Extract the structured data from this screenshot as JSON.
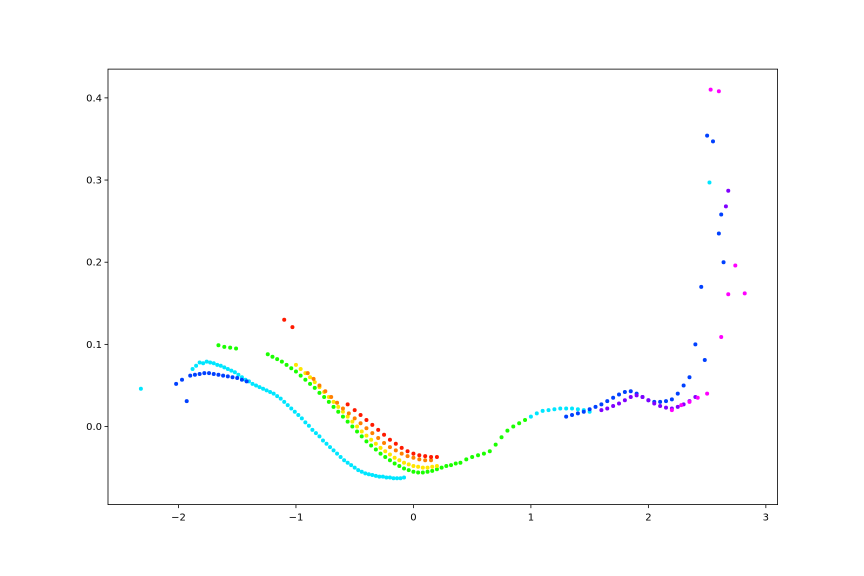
{
  "chart_data": {
    "type": "scatter",
    "title": "",
    "xlabel": "",
    "ylabel": "",
    "xlim": [
      -2.6,
      3.1
    ],
    "ylim": [
      -0.095,
      0.435
    ],
    "grid": false,
    "legend": "none",
    "x_ticks": [
      {
        "value": -2,
        "label": "−2"
      },
      {
        "value": -1,
        "label": "−1"
      },
      {
        "value": 0,
        "label": "0"
      },
      {
        "value": 1,
        "label": "1"
      },
      {
        "value": 2,
        "label": "2"
      },
      {
        "value": 3,
        "label": "3"
      }
    ],
    "y_ticks": [
      {
        "value": 0.0,
        "label": "0.0"
      },
      {
        "value": 0.1,
        "label": "0.1"
      },
      {
        "value": 0.2,
        "label": "0.2"
      },
      {
        "value": 0.3,
        "label": "0.3"
      },
      {
        "value": 0.4,
        "label": "0.4"
      }
    ],
    "colormap": "gist_rainbow",
    "colors": {
      "red": "#ff1a00",
      "orange": "#ff8000",
      "yellow": "#ffe600",
      "green": "#1aff00",
      "cyan": "#00e6ff",
      "blue": "#0040ff",
      "violet": "#8000ff",
      "magenta": "#ff00ff",
      "axis": "#000000"
    },
    "series": [
      {
        "color": "#00e6ff",
        "x": [
          -2.32,
          -1.88,
          -1.85,
          -1.82,
          -1.79,
          -1.76,
          -1.73,
          -1.7,
          -1.67,
          -1.64,
          -1.61,
          -1.58,
          -1.55,
          -1.52,
          -1.49,
          -1.46,
          -1.43,
          -1.4,
          -1.37,
          -1.34,
          -1.31,
          -1.28,
          -1.25,
          -1.22,
          -1.19,
          -1.16,
          -1.13,
          -1.1,
          -1.07,
          -1.04,
          -1.01,
          -0.98,
          -0.95,
          -0.92,
          -0.89,
          -0.86,
          -0.83,
          -0.8,
          -0.77,
          -0.74,
          -0.71,
          -0.68,
          -0.65,
          -0.62,
          -0.59,
          -0.56,
          -0.53,
          -0.5,
          -0.47,
          -0.44,
          -0.41,
          -0.38,
          -0.35,
          -0.32,
          -0.29,
          -0.26,
          -0.23,
          -0.2,
          -0.17,
          -0.14,
          -0.11,
          -0.08,
          1.0,
          1.05,
          1.1,
          1.15,
          1.2,
          1.25,
          1.3,
          1.35,
          1.4,
          1.45,
          1.5,
          2.52
        ],
        "y": [
          0.046,
          0.07,
          0.074,
          0.078,
          0.077,
          0.079,
          0.078,
          0.077,
          0.075,
          0.074,
          0.072,
          0.07,
          0.068,
          0.066,
          0.063,
          0.06,
          0.057,
          0.055,
          0.052,
          0.05,
          0.048,
          0.046,
          0.044,
          0.042,
          0.04,
          0.037,
          0.034,
          0.03,
          0.026,
          0.022,
          0.018,
          0.014,
          0.01,
          0.005,
          0.001,
          -0.004,
          -0.008,
          -0.012,
          -0.017,
          -0.021,
          -0.025,
          -0.029,
          -0.033,
          -0.037,
          -0.041,
          -0.044,
          -0.047,
          -0.05,
          -0.053,
          -0.055,
          -0.057,
          -0.058,
          -0.059,
          -0.06,
          -0.061,
          -0.061,
          -0.062,
          -0.062,
          -0.063,
          -0.063,
          -0.063,
          -0.062,
          0.012,
          0.016,
          0.019,
          0.02,
          0.021,
          0.022,
          0.022,
          0.022,
          0.021,
          0.02,
          0.018,
          0.297
        ]
      },
      {
        "color": "#1aff00",
        "x": [
          -1.66,
          -1.61,
          -1.56,
          -1.51,
          -1.24,
          -1.2,
          -1.16,
          -1.12,
          -1.08,
          -1.04,
          -1.0,
          -0.96,
          -0.92,
          -0.88,
          -0.84,
          -0.8,
          -0.76,
          -0.72,
          -0.68,
          -0.64,
          -0.6,
          -0.56,
          -0.52,
          -0.48,
          -0.44,
          -0.4,
          -0.36,
          -0.32,
          -0.28,
          -0.24,
          -0.2,
          -0.16,
          -0.12,
          -0.08,
          -0.04,
          0.0,
          0.04,
          0.08,
          0.12,
          0.16,
          0.2,
          0.24,
          0.28,
          0.32,
          0.36,
          0.4,
          0.45,
          0.5,
          0.55,
          0.6,
          0.65,
          0.7,
          0.75,
          0.8,
          0.85,
          0.9,
          0.95
        ],
        "y": [
          0.099,
          0.097,
          0.096,
          0.095,
          0.088,
          0.085,
          0.082,
          0.079,
          0.075,
          0.071,
          0.067,
          0.062,
          0.057,
          0.052,
          0.047,
          0.041,
          0.036,
          0.03,
          0.024,
          0.018,
          0.012,
          0.006,
          0.0,
          -0.006,
          -0.012,
          -0.018,
          -0.023,
          -0.028,
          -0.033,
          -0.037,
          -0.041,
          -0.045,
          -0.048,
          -0.051,
          -0.053,
          -0.055,
          -0.056,
          -0.056,
          -0.055,
          -0.054,
          -0.052,
          -0.05,
          -0.048,
          -0.047,
          -0.045,
          -0.044,
          -0.04,
          -0.037,
          -0.035,
          -0.033,
          -0.03,
          -0.022,
          -0.013,
          -0.005,
          0.0,
          0.004,
          0.008
        ]
      },
      {
        "color": "#ffe600",
        "x": [
          -1.0,
          -0.96,
          -0.92,
          -0.88,
          -0.84,
          -0.8,
          -0.76,
          -0.72,
          -0.68,
          -0.64,
          -0.6,
          -0.56,
          -0.52,
          -0.48,
          -0.44,
          -0.4,
          -0.36,
          -0.32,
          -0.28,
          -0.24,
          -0.2,
          -0.16,
          -0.12,
          -0.08,
          -0.04,
          0.0,
          0.04,
          0.08,
          0.12,
          0.16,
          0.2
        ],
        "y": [
          0.075,
          0.07,
          0.065,
          0.06,
          0.054,
          0.048,
          0.042,
          0.036,
          0.03,
          0.024,
          0.018,
          0.012,
          0.006,
          0.0,
          -0.006,
          -0.011,
          -0.016,
          -0.021,
          -0.026,
          -0.03,
          -0.034,
          -0.038,
          -0.041,
          -0.044,
          -0.046,
          -0.048,
          -0.049,
          -0.05,
          -0.05,
          -0.049,
          -0.048
        ]
      },
      {
        "color": "#ff8000",
        "x": [
          -0.9,
          -0.85,
          -0.8,
          -0.75,
          -0.7,
          -0.65,
          -0.6,
          -0.55,
          -0.5,
          -0.45,
          -0.4,
          -0.35,
          -0.3,
          -0.25,
          -0.2,
          -0.15,
          -0.1,
          -0.05,
          0.0,
          0.05,
          0.1,
          0.15
        ],
        "y": [
          0.065,
          0.058,
          0.05,
          0.043,
          0.036,
          0.029,
          0.022,
          0.016,
          0.01,
          0.004,
          -0.002,
          -0.008,
          -0.014,
          -0.02,
          -0.025,
          -0.029,
          -0.033,
          -0.036,
          -0.038,
          -0.04,
          -0.041,
          -0.041
        ]
      },
      {
        "color": "#ff1a00",
        "x": [
          -1.1,
          -1.03,
          -0.56,
          -0.5,
          -0.45,
          -0.4,
          -0.35,
          -0.3,
          -0.25,
          -0.2,
          -0.15,
          -0.1,
          -0.05,
          0.0,
          0.05,
          0.1,
          0.15,
          0.2
        ],
        "y": [
          0.13,
          0.121,
          0.027,
          0.02,
          0.014,
          0.008,
          0.002,
          -0.004,
          -0.01,
          -0.016,
          -0.021,
          -0.026,
          -0.03,
          -0.033,
          -0.035,
          -0.036,
          -0.037,
          -0.037
        ]
      },
      {
        "color": "#0040ff",
        "x": [
          -2.02,
          -1.97,
          -1.93,
          -1.9,
          -1.86,
          -1.82,
          -1.78,
          -1.74,
          -1.7,
          -1.66,
          -1.62,
          -1.58,
          -1.54,
          -1.5,
          -1.46,
          -1.42,
          1.3,
          1.35,
          1.4,
          1.45,
          1.5,
          1.55,
          1.6,
          1.65,
          1.7,
          1.75,
          1.8,
          1.85,
          1.9,
          1.95,
          2.0,
          2.05,
          2.1,
          2.15,
          2.2,
          2.25,
          2.3,
          2.35,
          2.4,
          2.45,
          2.48,
          2.5,
          2.55,
          2.6,
          2.62,
          2.64
        ],
        "y": [
          0.052,
          0.057,
          0.031,
          0.062,
          0.063,
          0.064,
          0.065,
          0.065,
          0.064,
          0.063,
          0.062,
          0.061,
          0.06,
          0.059,
          0.057,
          0.055,
          0.012,
          0.014,
          0.016,
          0.018,
          0.021,
          0.024,
          0.027,
          0.031,
          0.035,
          0.039,
          0.042,
          0.043,
          0.04,
          0.036,
          0.032,
          0.03,
          0.03,
          0.031,
          0.033,
          0.04,
          0.05,
          0.06,
          0.1,
          0.17,
          0.081,
          0.354,
          0.347,
          0.235,
          0.258,
          0.2
        ]
      },
      {
        "color": "#8000ff",
        "x": [
          1.6,
          1.65,
          1.7,
          1.75,
          1.8,
          1.85,
          1.9,
          1.95,
          2.0,
          2.05,
          2.1,
          2.15,
          2.2,
          2.25,
          2.3,
          2.35,
          2.4,
          2.66,
          2.68
        ],
        "y": [
          0.02,
          0.022,
          0.025,
          0.028,
          0.032,
          0.036,
          0.038,
          0.036,
          0.032,
          0.028,
          0.025,
          0.023,
          0.022,
          0.024,
          0.027,
          0.031,
          0.036,
          0.268,
          0.287
        ]
      },
      {
        "color": "#ff00ff",
        "x": [
          2.2,
          2.28,
          2.35,
          2.42,
          2.5,
          2.53,
          2.6,
          2.62,
          2.68,
          2.74,
          2.82
        ],
        "y": [
          0.02,
          0.026,
          0.03,
          0.035,
          0.04,
          0.41,
          0.408,
          0.109,
          0.161,
          0.196,
          0.162
        ]
      }
    ]
  }
}
